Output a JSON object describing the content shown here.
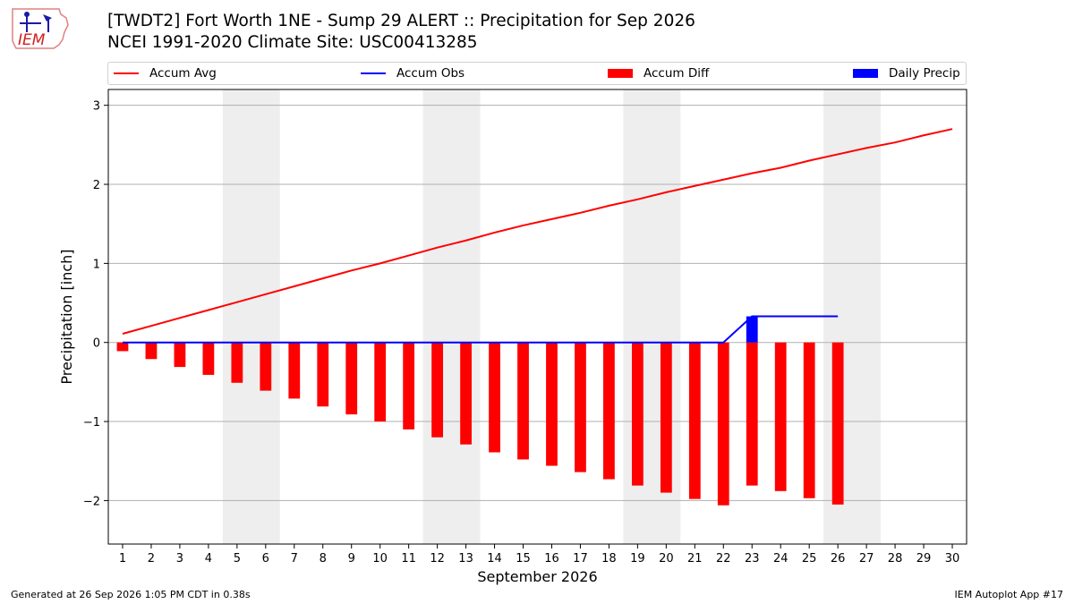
{
  "header": {
    "title_line1": "[TWDT2] Fort Worth 1NE - Sump 29 ALERT :: Precipitation for Sep 2026",
    "title_line2": "NCEI 1991-2020 Climate Site: USC00413285",
    "logo_text": "IEM"
  },
  "footer": {
    "generated": "Generated at 26 Sep 2026 1:05 PM CDT in 0.38s",
    "app": "IEM Autoplot App #17"
  },
  "chart_data": {
    "type": "bar",
    "xlabel": "September 2026",
    "ylabel": "Precipitation [inch]",
    "xlim": [
      0.5,
      30.5
    ],
    "ylim": [
      -2.55,
      3.2
    ],
    "yticks": [
      -2,
      -1,
      0,
      1,
      2,
      3
    ],
    "ytick_labels": [
      "−2",
      "−1",
      "0",
      "1",
      "2",
      "3"
    ],
    "grid": "horizontal",
    "legend_placement": "top",
    "weekend_shading": [
      [
        5,
        6
      ],
      [
        12,
        13
      ],
      [
        19,
        20
      ],
      [
        26,
        27
      ]
    ],
    "days": [
      1,
      2,
      3,
      4,
      5,
      6,
      7,
      8,
      9,
      10,
      11,
      12,
      13,
      14,
      15,
      16,
      17,
      18,
      19,
      20,
      21,
      22,
      23,
      24,
      25,
      26,
      27,
      28,
      29,
      30
    ],
    "series": [
      {
        "name": "Accum Avg",
        "kind": "line",
        "color": "#ff0000",
        "values": [
          0.11,
          0.21,
          0.31,
          0.41,
          0.51,
          0.61,
          0.71,
          0.81,
          0.91,
          1.0,
          1.1,
          1.2,
          1.29,
          1.39,
          1.48,
          1.56,
          1.64,
          1.73,
          1.81,
          1.9,
          1.98,
          2.06,
          2.14,
          2.21,
          2.3,
          2.38,
          2.46,
          2.53,
          2.62,
          2.7
        ]
      },
      {
        "name": "Accum Obs",
        "kind": "line",
        "color": "#0000ff",
        "values": [
          0,
          0,
          0,
          0,
          0,
          0,
          0,
          0,
          0,
          0,
          0,
          0,
          0,
          0,
          0,
          0,
          0,
          0,
          0,
          0,
          0,
          0,
          0.33,
          0.33,
          0.33,
          0.33
        ]
      },
      {
        "name": "Accum Diff",
        "kind": "bar",
        "color": "#ff0000",
        "values": [
          -0.11,
          -0.21,
          -0.31,
          -0.41,
          -0.51,
          -0.61,
          -0.71,
          -0.81,
          -0.91,
          -1.0,
          -1.1,
          -1.2,
          -1.29,
          -1.39,
          -1.48,
          -1.56,
          -1.64,
          -1.73,
          -1.81,
          -1.9,
          -1.98,
          -2.06,
          -1.81,
          -1.88,
          -1.97,
          -2.05
        ]
      },
      {
        "name": "Daily Precip",
        "kind": "bar",
        "color": "#0000ff",
        "values": [
          0,
          0,
          0,
          0,
          0,
          0,
          0,
          0,
          0,
          0,
          0,
          0,
          0,
          0,
          0,
          0,
          0,
          0,
          0,
          0,
          0,
          0,
          0.33,
          0,
          0,
          0
        ]
      }
    ]
  }
}
